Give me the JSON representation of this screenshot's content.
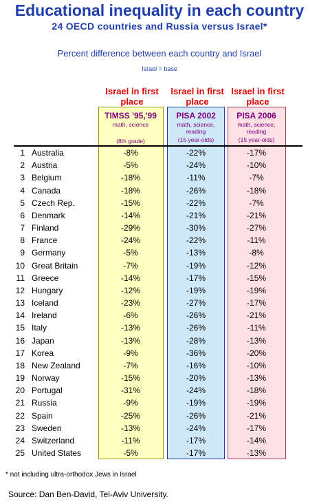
{
  "header": {
    "title": "Educational inequality in each country",
    "subtitle": "24 OECD countries and Russia versus Israel*",
    "description": "Percent difference between each country and Israel",
    "base_note": "Israel = base"
  },
  "table": {
    "columns": [
      {
        "rank_label": "Israel in first place",
        "test": "TIMSS '95,'99",
        "subjects": "math, science",
        "group": "(8th grade)"
      },
      {
        "rank_label": "Israel in first place",
        "test": "PISA 2002",
        "subjects": "math, science, reading",
        "group": "(15 year-olds)"
      },
      {
        "rank_label": "Israel in first place",
        "test": "PISA 2006",
        "subjects": "math, science, reading",
        "group": "(15 year-olds)"
      }
    ],
    "rows": [
      [
        "1",
        "Australia",
        "-8%",
        "-22%",
        "-17%"
      ],
      [
        "2",
        "Austria",
        "-5%",
        "-24%",
        "-10%"
      ],
      [
        "3",
        "Belgium",
        "-18%",
        "-11%",
        "-7%"
      ],
      [
        "4",
        "Canada",
        "-18%",
        "-26%",
        "-18%"
      ],
      [
        "5",
        "Czech Rep.",
        "-15%",
        "-22%",
        "-7%"
      ],
      [
        "6",
        "Denmark",
        "-14%",
        "-21%",
        "-21%"
      ],
      [
        "7",
        "Finland",
        "-29%",
        "-30%",
        "-27%"
      ],
      [
        "8",
        "France",
        "-24%",
        "-22%",
        "-11%"
      ],
      [
        "9",
        "Germany",
        "-5%",
        "-13%",
        "-8%"
      ],
      [
        "10",
        "Great Britain",
        "-7%",
        "-19%",
        "-12%"
      ],
      [
        "11",
        "Greece",
        "-14%",
        "-17%",
        "-15%"
      ],
      [
        "12",
        "Hungary",
        "-12%",
        "-19%",
        "-19%"
      ],
      [
        "13",
        "Iceland",
        "-23%",
        "-27%",
        "-17%"
      ],
      [
        "14",
        "Ireland",
        "-6%",
        "-26%",
        "-21%"
      ],
      [
        "15",
        "Italy",
        "-13%",
        "-26%",
        "-11%"
      ],
      [
        "16",
        "Japan",
        "-13%",
        "-28%",
        "-13%"
      ],
      [
        "17",
        "Korea",
        "-9%",
        "-36%",
        "-20%"
      ],
      [
        "18",
        "New Zealand",
        "-7%",
        "-16%",
        "-10%"
      ],
      [
        "19",
        "Norway",
        "-15%",
        "-20%",
        "-13%"
      ],
      [
        "20",
        "Portugal",
        "-31%",
        "-24%",
        "-18%"
      ],
      [
        "21",
        "Russia",
        "-9%",
        "-19%",
        "-19%"
      ],
      [
        "22",
        "Spain",
        "-25%",
        "-26%",
        "-21%"
      ],
      [
        "23",
        "Sweden",
        "-13%",
        "-24%",
        "-17%"
      ],
      [
        "24",
        "Switzerland",
        "-11%",
        "-17%",
        "-14%"
      ],
      [
        "25",
        "United States",
        "-5%",
        "-17%",
        "-13%"
      ]
    ]
  },
  "footer": {
    "footnote": "* not including ultra-orthodox Jews in Israel",
    "source": "Source: Dan Ben-David, Tel-Aviv University."
  }
}
